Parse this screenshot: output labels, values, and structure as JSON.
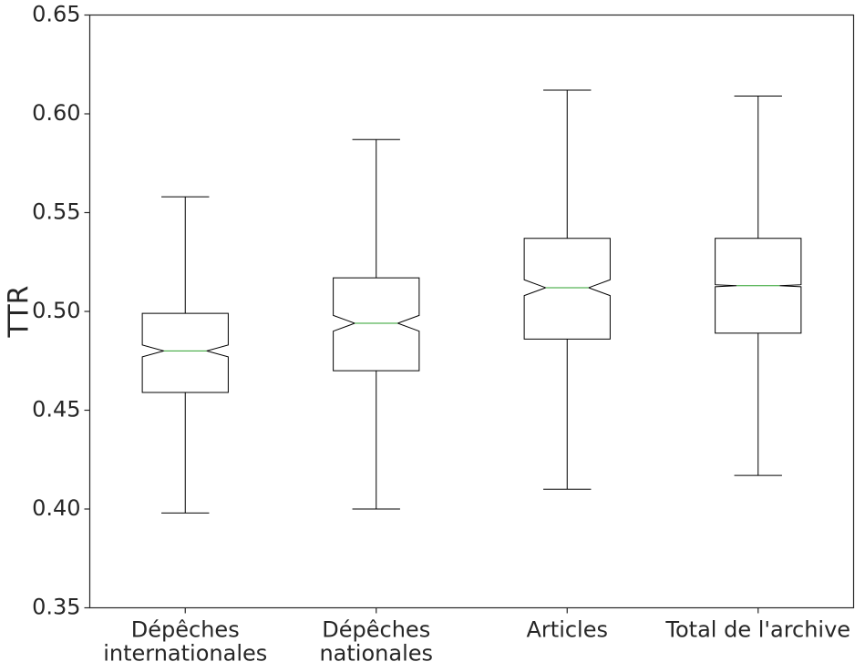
{
  "chart_data": {
    "type": "box",
    "y_label": "TTR",
    "categories": [
      "Dépêches\ninternationales",
      "Dépêches\nnationales",
      "Articles",
      "Total de l'archive"
    ],
    "boxes": [
      {
        "whislo": 0.398,
        "q1": 0.459,
        "ci_low": 0.477,
        "median": 0.48,
        "ci_high": 0.483,
        "q3": 0.499,
        "whishi": 0.558
      },
      {
        "whislo": 0.4,
        "q1": 0.47,
        "ci_low": 0.49,
        "median": 0.494,
        "ci_high": 0.498,
        "q3": 0.517,
        "whishi": 0.587
      },
      {
        "whislo": 0.41,
        "q1": 0.486,
        "ci_low": 0.508,
        "median": 0.512,
        "ci_high": 0.516,
        "q3": 0.537,
        "whishi": 0.612
      },
      {
        "whislo": 0.417,
        "q1": 0.489,
        "ci_low": 0.5125,
        "median": 0.513,
        "ci_high": 0.5135,
        "q3": 0.537,
        "whishi": 0.609
      }
    ],
    "box_color": "#000000",
    "median_color": "#2ca02c",
    "ylim": [
      0.35,
      0.65
    ],
    "yticks": [
      0.35,
      {
        "value": 0.4,
        "label": "0.40"
      },
      0.45,
      {
        "value": 0.5,
        "label": "0.50"
      },
      0.55,
      {
        "value": 0.6,
        "label": "0.60"
      },
      0.65
    ]
  }
}
